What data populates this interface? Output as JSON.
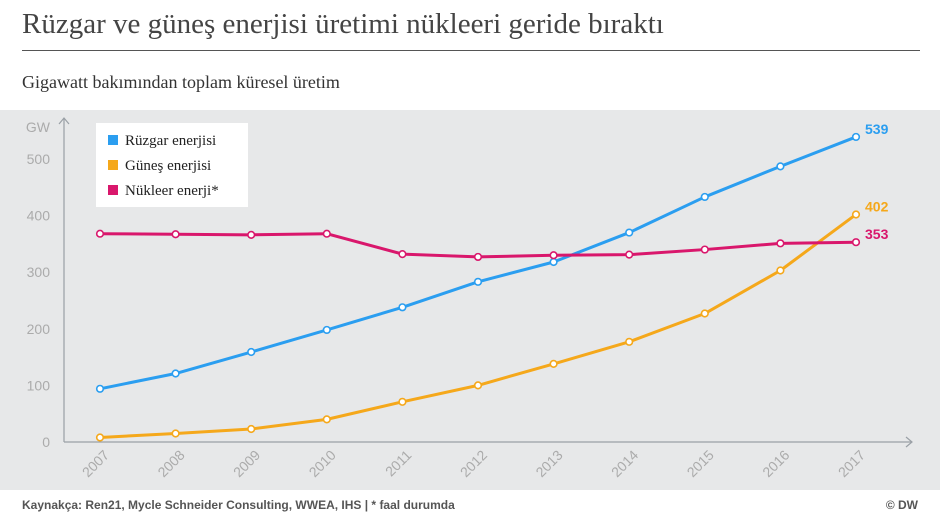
{
  "header": {
    "title": "Rüzgar ve güneş enerjisi üretimi nükleeri geride bıraktı",
    "subtitle": "Gigawatt bakımından toplam küresel üretim"
  },
  "footer": {
    "source": "Kaynakça: Ren21, Mycle Schneider Consulting, WWEA, IHS | * faal durumda",
    "copyright": "© DW"
  },
  "chart_data": {
    "type": "line",
    "title": "Rüzgar ve güneş enerjisi üretimi nükleeri geride bıraktı",
    "subtitle": "Gigawatt bakımından toplam küresel üretim",
    "ylabel": "GW",
    "xlabel": "",
    "x": [
      "2007",
      "2008",
      "2009",
      "2010",
      "2011",
      "2012",
      "2013",
      "2014",
      "2015",
      "2016",
      "2017"
    ],
    "ylim": [
      0,
      560
    ],
    "yticks": [
      0,
      100,
      200,
      300,
      400,
      500
    ],
    "grid": false,
    "legend_position": "top-left",
    "series": [
      {
        "name": "Rüzgar enerjisi",
        "color": "#2b9ef0",
        "values": [
          94,
          121,
          159,
          198,
          238,
          283,
          318,
          370,
          433,
          487,
          539
        ],
        "end_label": "539"
      },
      {
        "name": "Güneş enerjisi",
        "color": "#f5a81b",
        "values": [
          8,
          15,
          23,
          40,
          71,
          100,
          138,
          177,
          227,
          303,
          402
        ],
        "end_label": "402"
      },
      {
        "name": "Nükleer enerji*",
        "color": "#d9176c",
        "values": [
          368,
          367,
          366,
          368,
          332,
          327,
          330,
          331,
          340,
          351,
          353
        ],
        "end_label": "353"
      }
    ]
  }
}
